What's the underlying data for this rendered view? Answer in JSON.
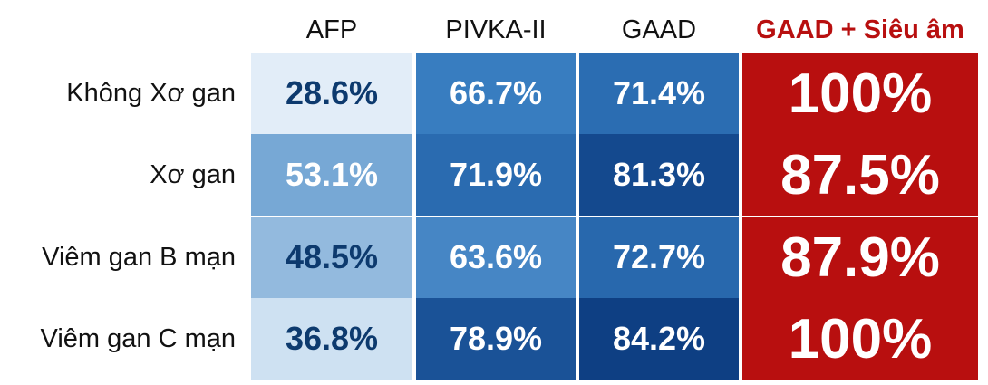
{
  "chart_data": {
    "type": "heatmap",
    "columns": [
      "AFP",
      "PIVKA-II",
      "GAAD",
      "GAAD + Siêu âm"
    ],
    "highlight_column": "GAAD + Siêu âm",
    "rows": [
      "Không Xơ gan",
      "Xơ gan",
      "Viêm gan B mạn",
      "Viêm gan C mạn"
    ],
    "values": [
      [
        28.6,
        66.7,
        71.4,
        100
      ],
      [
        53.1,
        71.9,
        81.3,
        87.5
      ],
      [
        48.5,
        63.6,
        72.7,
        87.9
      ],
      [
        36.8,
        78.9,
        84.2,
        100
      ]
    ],
    "labels": [
      [
        "28.6%",
        "66.7%",
        "71.4%",
        "100%"
      ],
      [
        "53.1%",
        "71.9%",
        "81.3%",
        "87.5%"
      ],
      [
        "48.5%",
        "63.6%",
        "72.7%",
        "87.9%"
      ],
      [
        "36.8%",
        "78.9%",
        "84.2%",
        "100%"
      ]
    ],
    "unit": "%",
    "color_scale": "blues",
    "highlight_color": "#b80f0f"
  }
}
